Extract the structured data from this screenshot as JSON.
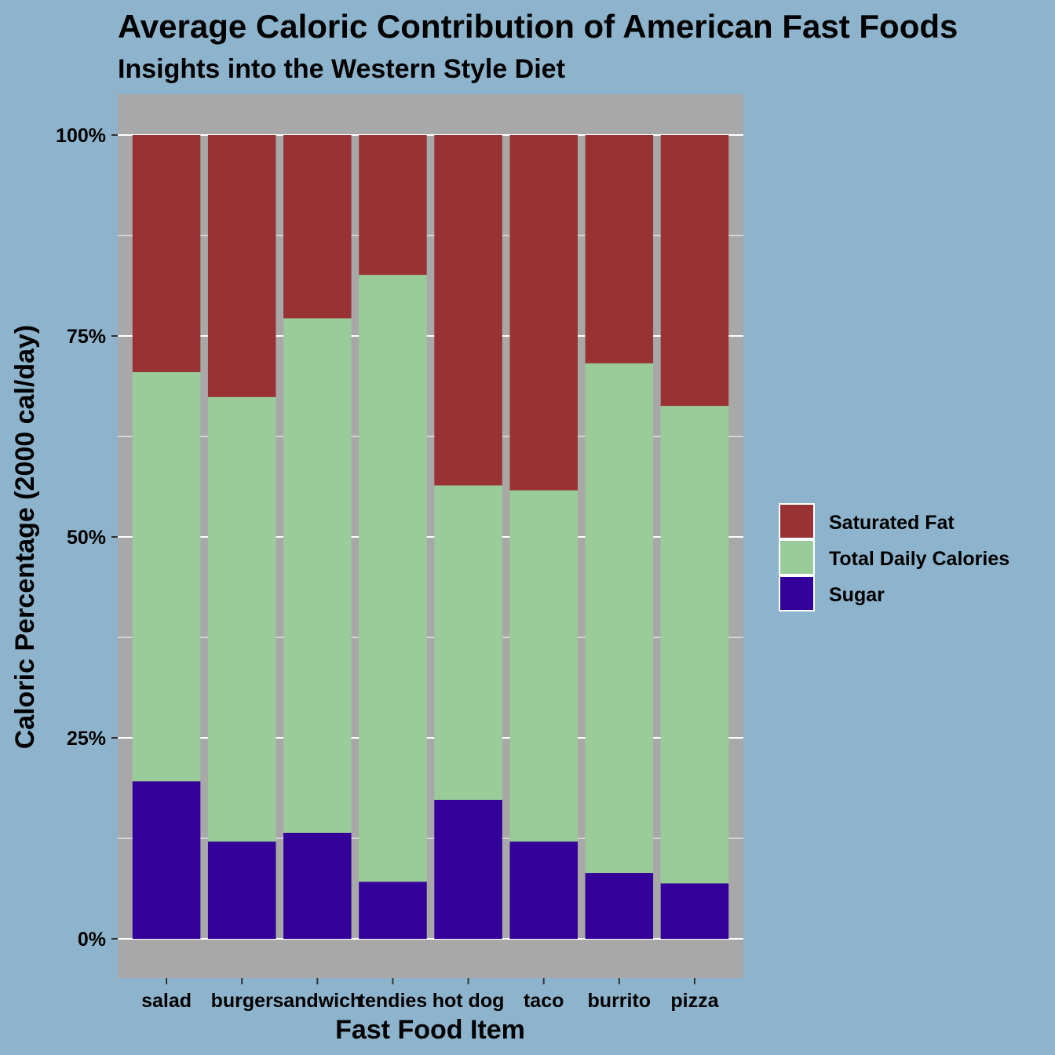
{
  "chart_data": {
    "type": "bar",
    "stacked": true,
    "percent": true,
    "title": "Average Caloric Contribution of American Fast Foods",
    "subtitle": "Insights into the Western Style Diet",
    "xlabel": "Fast Food Item",
    "ylabel": "Caloric Percentage (2000 cal/day)",
    "categories": [
      "salad",
      "burger",
      "sandwich",
      "tendies",
      "hot dog",
      "taco",
      "burrito",
      "pizza"
    ],
    "ylim": [
      0,
      1
    ],
    "yticks": [
      0,
      0.25,
      0.5,
      0.75,
      1
    ],
    "ytick_labels": [
      "0%",
      "25%",
      "50%",
      "75%",
      "100%"
    ],
    "grid": true,
    "legend_position": "right",
    "series": [
      {
        "name": "Sugar",
        "color": "#330099",
        "values": [
          0.196,
          0.121,
          0.132,
          0.071,
          0.173,
          0.121,
          0.082,
          0.069
        ]
      },
      {
        "name": "Total Daily Calories",
        "color": "#99cc99",
        "values": [
          0.509,
          0.553,
          0.64,
          0.755,
          0.391,
          0.437,
          0.634,
          0.594
        ]
      },
      {
        "name": "Saturated Fat",
        "color": "#993333",
        "values": [
          0.295,
          0.326,
          0.228,
          0.174,
          0.436,
          0.442,
          0.284,
          0.337
        ]
      }
    ],
    "legend_order": [
      "Saturated Fat",
      "Total Daily Calories",
      "Sugar"
    ]
  }
}
